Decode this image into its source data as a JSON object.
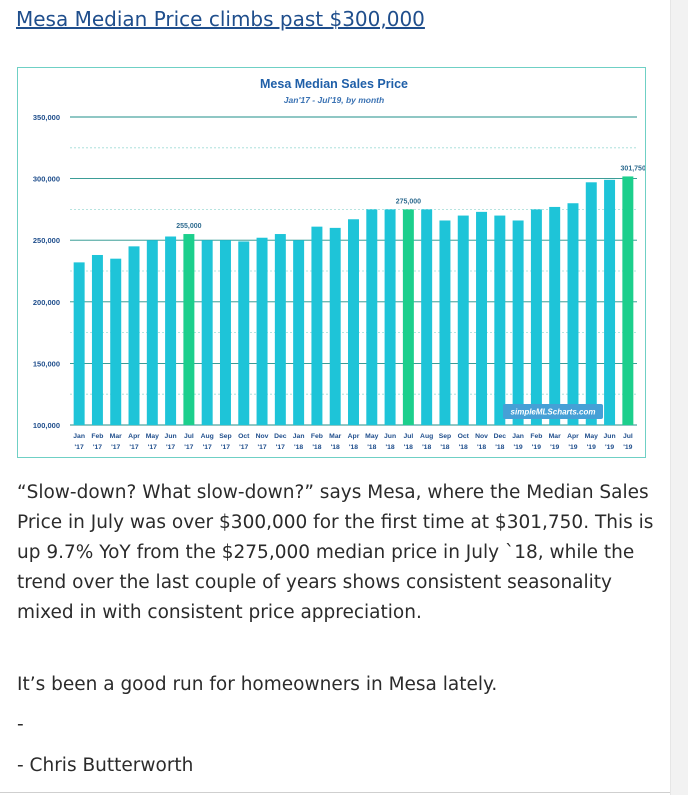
{
  "headline": "Mesa Median Price climbs past $300,000",
  "chart_data": {
    "type": "bar",
    "title": "Mesa Median Sales Price",
    "subtitle": "Jan'17 - Jul'19, by month",
    "watermark": "simpleMLScharts.com",
    "categories": [
      "Jan",
      "Feb",
      "Mar",
      "Apr",
      "May",
      "Jun",
      "Jul",
      "Aug",
      "Sep",
      "Oct",
      "Nov",
      "Dec",
      "Jan",
      "Feb",
      "Mar",
      "Apr",
      "May",
      "Jun",
      "Jul",
      "Aug",
      "Sep",
      "Oct",
      "Nov",
      "Dec",
      "Jan",
      "Feb",
      "Mar",
      "Apr",
      "May",
      "Jun",
      "Jul"
    ],
    "years": [
      "'17",
      "'17",
      "'17",
      "'17",
      "'17",
      "'17",
      "'17",
      "'17",
      "'17",
      "'17",
      "'17",
      "'17",
      "'18",
      "'18",
      "'18",
      "'18",
      "'18",
      "'18",
      "'18",
      "'18",
      "'18",
      "'18",
      "'18",
      "'18",
      "'19",
      "'19",
      "'19",
      "'19",
      "'19",
      "'19",
      "'19"
    ],
    "values": [
      232000,
      238000,
      235000,
      245000,
      250000,
      253000,
      255000,
      250000,
      250000,
      249000,
      252000,
      255000,
      250000,
      261000,
      260000,
      267000,
      275000,
      275000,
      275000,
      275000,
      266000,
      270000,
      273000,
      270000,
      266000,
      275000,
      277000,
      280000,
      297000,
      299000,
      301750
    ],
    "highlight_indices": [
      6,
      18,
      30
    ],
    "data_labels": [
      {
        "index": 6,
        "text": "255,000"
      },
      {
        "index": 18,
        "text": "275,000"
      },
      {
        "index": 30,
        "text": "301,750"
      }
    ],
    "ylim": [
      100000,
      350000
    ],
    "yticks": [
      100000,
      150000,
      200000,
      250000,
      300000,
      350000
    ],
    "ytick_labels": [
      "100,000",
      "150,000",
      "200,000",
      "250,000",
      "300,000",
      "350,000"
    ],
    "grid": true,
    "legend": "none",
    "colors": {
      "bar": "#1ec4d8",
      "highlight": "#1ccf8c",
      "title": "#1f5fa8",
      "subtitle": "#3a72b3",
      "watermark_bg": "#46a0d6",
      "grid_major": "#1f8f88",
      "grid_minor": "#9fdcd6"
    }
  },
  "paragraphs": {
    "p1": "“Slow-down? What slow-down?” says Mesa, where the Median Sales Price in July was over $300,000 for the first time at $301,750. This is up 9.7% YoY from the $275,000 median price in July `18, while the trend over the last couple of years shows consistent seasonality mixed in with consistent price appreciation.",
    "p2": "It’s been a good run for homeowners in Mesa lately.",
    "p3": "-",
    "p4": "- Chris Butterworth"
  }
}
